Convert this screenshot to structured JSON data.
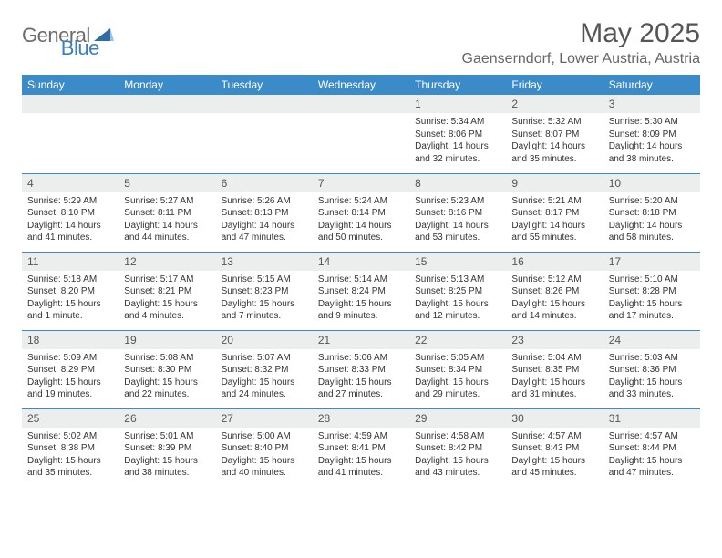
{
  "brand": {
    "word1": "General",
    "word2": "Blue",
    "tri_color": "#2f6da8"
  },
  "title": "May 2025",
  "location": "Gaenserndorf, Lower Austria, Austria",
  "header_bg": "#3b8bc8",
  "header_fg": "#ffffff",
  "daynum_bg": "#eceded",
  "rule_color": "#3b8bc8",
  "dayHeaders": [
    "Sunday",
    "Monday",
    "Tuesday",
    "Wednesday",
    "Thursday",
    "Friday",
    "Saturday"
  ],
  "weeks": [
    [
      null,
      null,
      null,
      null,
      {
        "n": "1",
        "sr": "5:34 AM",
        "ss": "8:06 PM",
        "dl": "14 hours and 32 minutes."
      },
      {
        "n": "2",
        "sr": "5:32 AM",
        "ss": "8:07 PM",
        "dl": "14 hours and 35 minutes."
      },
      {
        "n": "3",
        "sr": "5:30 AM",
        "ss": "8:09 PM",
        "dl": "14 hours and 38 minutes."
      }
    ],
    [
      {
        "n": "4",
        "sr": "5:29 AM",
        "ss": "8:10 PM",
        "dl": "14 hours and 41 minutes."
      },
      {
        "n": "5",
        "sr": "5:27 AM",
        "ss": "8:11 PM",
        "dl": "14 hours and 44 minutes."
      },
      {
        "n": "6",
        "sr": "5:26 AM",
        "ss": "8:13 PM",
        "dl": "14 hours and 47 minutes."
      },
      {
        "n": "7",
        "sr": "5:24 AM",
        "ss": "8:14 PM",
        "dl": "14 hours and 50 minutes."
      },
      {
        "n": "8",
        "sr": "5:23 AM",
        "ss": "8:16 PM",
        "dl": "14 hours and 53 minutes."
      },
      {
        "n": "9",
        "sr": "5:21 AM",
        "ss": "8:17 PM",
        "dl": "14 hours and 55 minutes."
      },
      {
        "n": "10",
        "sr": "5:20 AM",
        "ss": "8:18 PM",
        "dl": "14 hours and 58 minutes."
      }
    ],
    [
      {
        "n": "11",
        "sr": "5:18 AM",
        "ss": "8:20 PM",
        "dl": "15 hours and 1 minute."
      },
      {
        "n": "12",
        "sr": "5:17 AM",
        "ss": "8:21 PM",
        "dl": "15 hours and 4 minutes."
      },
      {
        "n": "13",
        "sr": "5:15 AM",
        "ss": "8:23 PM",
        "dl": "15 hours and 7 minutes."
      },
      {
        "n": "14",
        "sr": "5:14 AM",
        "ss": "8:24 PM",
        "dl": "15 hours and 9 minutes."
      },
      {
        "n": "15",
        "sr": "5:13 AM",
        "ss": "8:25 PM",
        "dl": "15 hours and 12 minutes."
      },
      {
        "n": "16",
        "sr": "5:12 AM",
        "ss": "8:26 PM",
        "dl": "15 hours and 14 minutes."
      },
      {
        "n": "17",
        "sr": "5:10 AM",
        "ss": "8:28 PM",
        "dl": "15 hours and 17 minutes."
      }
    ],
    [
      {
        "n": "18",
        "sr": "5:09 AM",
        "ss": "8:29 PM",
        "dl": "15 hours and 19 minutes."
      },
      {
        "n": "19",
        "sr": "5:08 AM",
        "ss": "8:30 PM",
        "dl": "15 hours and 22 minutes."
      },
      {
        "n": "20",
        "sr": "5:07 AM",
        "ss": "8:32 PM",
        "dl": "15 hours and 24 minutes."
      },
      {
        "n": "21",
        "sr": "5:06 AM",
        "ss": "8:33 PM",
        "dl": "15 hours and 27 minutes."
      },
      {
        "n": "22",
        "sr": "5:05 AM",
        "ss": "8:34 PM",
        "dl": "15 hours and 29 minutes."
      },
      {
        "n": "23",
        "sr": "5:04 AM",
        "ss": "8:35 PM",
        "dl": "15 hours and 31 minutes."
      },
      {
        "n": "24",
        "sr": "5:03 AM",
        "ss": "8:36 PM",
        "dl": "15 hours and 33 minutes."
      }
    ],
    [
      {
        "n": "25",
        "sr": "5:02 AM",
        "ss": "8:38 PM",
        "dl": "15 hours and 35 minutes."
      },
      {
        "n": "26",
        "sr": "5:01 AM",
        "ss": "8:39 PM",
        "dl": "15 hours and 38 minutes."
      },
      {
        "n": "27",
        "sr": "5:00 AM",
        "ss": "8:40 PM",
        "dl": "15 hours and 40 minutes."
      },
      {
        "n": "28",
        "sr": "4:59 AM",
        "ss": "8:41 PM",
        "dl": "15 hours and 41 minutes."
      },
      {
        "n": "29",
        "sr": "4:58 AM",
        "ss": "8:42 PM",
        "dl": "15 hours and 43 minutes."
      },
      {
        "n": "30",
        "sr": "4:57 AM",
        "ss": "8:43 PM",
        "dl": "15 hours and 45 minutes."
      },
      {
        "n": "31",
        "sr": "4:57 AM",
        "ss": "8:44 PM",
        "dl": "15 hours and 47 minutes."
      }
    ]
  ],
  "labels": {
    "sunrise": "Sunrise: ",
    "sunset": "Sunset: ",
    "daylight": "Daylight: "
  }
}
